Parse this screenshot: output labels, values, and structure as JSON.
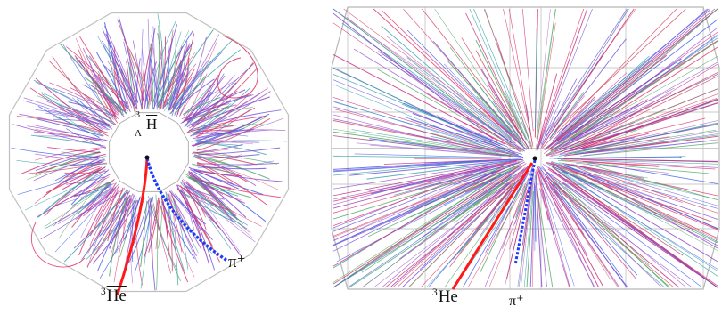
{
  "panels": [
    {
      "view": "end-view",
      "labels": {
        "hypertriton": {
          "superscript": "3",
          "subscript": "Λ",
          "symbol": "H"
        },
        "helium3": {
          "superscript": "3",
          "symbol": "He"
        },
        "pion": "π⁺"
      }
    },
    {
      "view": "side-view",
      "labels": {
        "helium3": {
          "superscript": "3",
          "symbol": "He"
        },
        "pion": "π⁺"
      }
    }
  ],
  "colors": {
    "helium3_track": "#ff1a1a",
    "pion_track": "#1a3cff",
    "background_tracks": [
      "#e0306a",
      "#c8287a",
      "#6a50d8",
      "#3d5cf0",
      "#8a3cc8",
      "#d04060",
      "#38a0a8",
      "#4ea860",
      "#a060d0"
    ],
    "detector_outline": "#b8b8b8"
  }
}
